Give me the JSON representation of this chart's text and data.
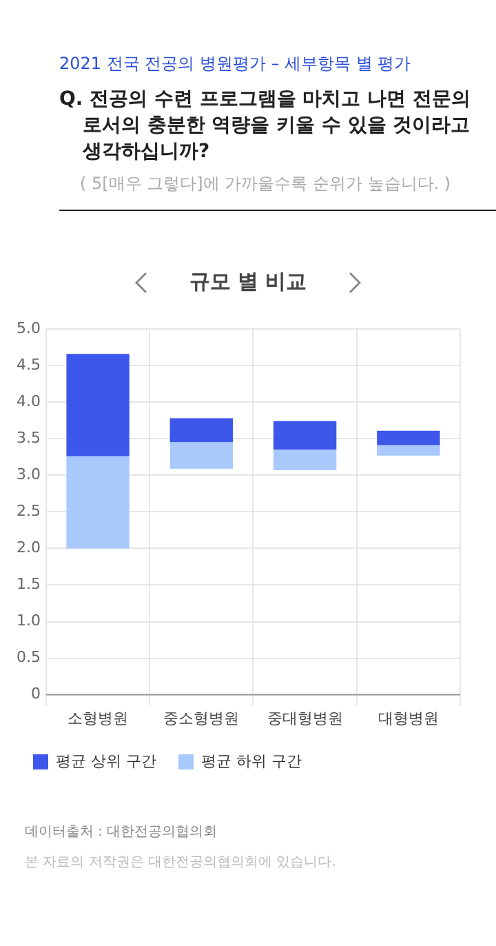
{
  "chart_data": {
    "type": "bar",
    "subtitle": "2021 전국 전공의 병원평가 – 세부항목 별 평가",
    "title": "Q. 전공의 수련 프로그램을 마치고 나면 전문의로서의 충분한 역량을 키울 수 있을 것이라고 생각하십니까?",
    "annotations": [
      "( 5[매우 그렇다]에 가까울수록 순위가 높습니다. )",
      "규모 별 비교",
      "데이터출처 : 대한전공의협의회",
      "본 자료의 저작권은 대한전공의협의회에 있습니다."
    ],
    "categories": [
      "소형병원",
      "중소형병원",
      "중대형병원",
      "대형병원"
    ],
    "series": [
      {
        "name": "평균 하위 구간",
        "color": "#a9c8fc",
        "base": [
          2.0,
          3.09,
          3.07,
          3.27
        ],
        "values": [
          1.26,
          0.36,
          0.28,
          0.14
        ]
      },
      {
        "name": "평균 상위 구간",
        "color": "#3d57eb",
        "base": [
          3.26,
          3.45,
          3.35,
          3.41
        ],
        "values": [
          1.4,
          0.33,
          0.39,
          0.2
        ]
      }
    ],
    "ylim": [
      0,
      5
    ],
    "yticks": [
      0,
      0.5,
      {
        "value": 1,
        "label": "1.0"
      },
      1.5,
      {
        "value": 2,
        "label": "2.0"
      },
      2.5,
      {
        "value": 3,
        "label": "3.0"
      },
      3.5,
      {
        "value": 4,
        "label": "4.0"
      },
      4.5,
      {
        "value": 5,
        "label": "5.0"
      }
    ],
    "grid": true,
    "legend": "bottom left"
  }
}
